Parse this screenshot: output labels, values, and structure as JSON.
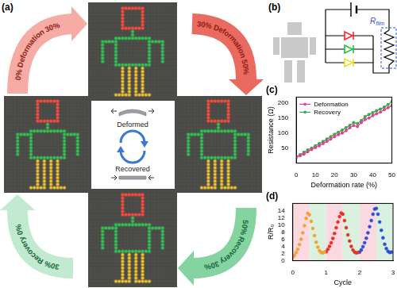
{
  "panels": {
    "a": {
      "label": "(a)",
      "led_colors": {
        "head": "#ff4a3d",
        "body": "#34c257",
        "legs": "#f2c230"
      },
      "arrows": [
        {
          "start": "0%",
          "label": "Deformation",
          "end": "30%",
          "color": "#f6aca4"
        },
        {
          "start": "30%",
          "label": "Deformation",
          "end": "50%",
          "color": "#ea6a60"
        },
        {
          "start": "50%",
          "label": "Recovery",
          "end": "30%",
          "color": "#86d3a2"
        },
        {
          "start": "30%",
          "label": "Recovery",
          "end": "0%",
          "color": "#c2ead0"
        }
      ],
      "center": {
        "top": "Deformed",
        "bottom": "Recovered"
      }
    },
    "b": {
      "label": "(b)",
      "resistor": {
        "symbol": "R",
        "subscript": "film"
      },
      "led_colors": [
        "#ff2020",
        "#22c040",
        "#f0e020"
      ]
    }
  },
  "chart_data": [
    {
      "type": "line",
      "title": "(c)",
      "x_label": "Deformation rate (%)",
      "y_label": "Resistance (Ω)",
      "x": [
        0,
        2,
        4,
        6,
        8,
        10,
        12,
        14,
        16,
        18,
        20,
        22,
        24,
        26,
        28,
        30,
        32,
        34,
        36,
        38,
        40,
        42,
        44,
        46,
        48,
        50
      ],
      "series": [
        {
          "name": "Deformation",
          "color": "#e0409a",
          "marker": "circle",
          "values": [
            20,
            25,
            30,
            38,
            45,
            52,
            58,
            65,
            72,
            80,
            88,
            95,
            100,
            108,
            118,
            125,
            122,
            135,
            145,
            150,
            158,
            165,
            170,
            178,
            185,
            192
          ]
        },
        {
          "name": "Recovery",
          "color": "#3aa845",
          "marker": "circle",
          "values": [
            22,
            28,
            36,
            44,
            50,
            58,
            65,
            72,
            80,
            88,
            96,
            103,
            110,
            118,
            126,
            135,
            132,
            142,
            155,
            162,
            168,
            175,
            180,
            187,
            195,
            205
          ]
        }
      ],
      "xlim": [
        0,
        50
      ],
      "xticks": [
        0,
        10,
        20,
        30,
        40,
        50
      ],
      "ylim": [
        0,
        220
      ],
      "yticks": [
        50,
        100,
        150,
        200
      ],
      "grid": false,
      "legend": "upper left"
    },
    {
      "type": "scatter",
      "title": "(d)",
      "x_label": "Cycle",
      "y_label": "R/R₀",
      "series": [
        {
          "color": "#f5a030",
          "marker": "circle",
          "x": [
            0.0,
            0.05,
            0.1,
            0.15,
            0.2,
            0.25,
            0.3,
            0.35,
            0.4,
            0.45,
            0.5,
            0.55,
            0.6,
            0.65,
            0.7,
            0.75,
            0.8,
            0.85,
            0.9,
            0.95
          ],
          "values": [
            1.0,
            1.5,
            2.3,
            3.2,
            4.5,
            6.0,
            7.8,
            9.8,
            11.8,
            13.2,
            12.8,
            11.0,
            9.0,
            7.0,
            5.2,
            3.8,
            2.8,
            2.3,
            2.2,
            2.4
          ]
        },
        {
          "color": "#e8302a",
          "marker": "circle",
          "x": [
            1.0,
            1.05,
            1.1,
            1.15,
            1.2,
            1.25,
            1.3,
            1.35,
            1.4,
            1.45,
            1.5,
            1.55,
            1.6,
            1.65,
            1.7,
            1.75,
            1.8,
            1.85,
            1.9,
            1.95
          ],
          "values": [
            2.5,
            3.2,
            4.0,
            5.0,
            6.2,
            7.6,
            9.2,
            10.8,
            12.3,
            13.3,
            13.0,
            11.2,
            9.2,
            7.2,
            5.5,
            4.0,
            3.0,
            2.4,
            2.2,
            2.3
          ]
        },
        {
          "color": "#2a50d8",
          "marker": "circle",
          "x": [
            2.0,
            2.05,
            2.1,
            2.15,
            2.2,
            2.25,
            2.3,
            2.35,
            2.4,
            2.45,
            2.5,
            2.55,
            2.6,
            2.65,
            2.7,
            2.75,
            2.8,
            2.85,
            2.9,
            2.95
          ],
          "values": [
            2.4,
            3.0,
            3.9,
            5.0,
            6.3,
            7.8,
            9.5,
            11.2,
            13.0,
            14.4,
            14.6,
            13.0,
            10.8,
            8.5,
            6.4,
            4.6,
            3.4,
            2.6,
            2.3,
            2.4
          ]
        }
      ],
      "bands": [
        {
          "from": 0,
          "to": 0.5,
          "color": "#fbd9e0"
        },
        {
          "from": 0.5,
          "to": 1,
          "color": "#d9f2df"
        },
        {
          "from": 1,
          "to": 1.5,
          "color": "#fbd9e0"
        },
        {
          "from": 1.5,
          "to": 2,
          "color": "#d9f2df"
        },
        {
          "from": 2,
          "to": 2.5,
          "color": "#fbd9e0"
        },
        {
          "from": 2.5,
          "to": 3,
          "color": "#d9f2df"
        }
      ],
      "xlim": [
        0,
        3
      ],
      "xticks": [
        0,
        1,
        2,
        3
      ],
      "ylim": [
        0,
        16
      ],
      "yticks": [
        0,
        2,
        4,
        6,
        8,
        10,
        12,
        14
      ],
      "grid": false
    }
  ]
}
